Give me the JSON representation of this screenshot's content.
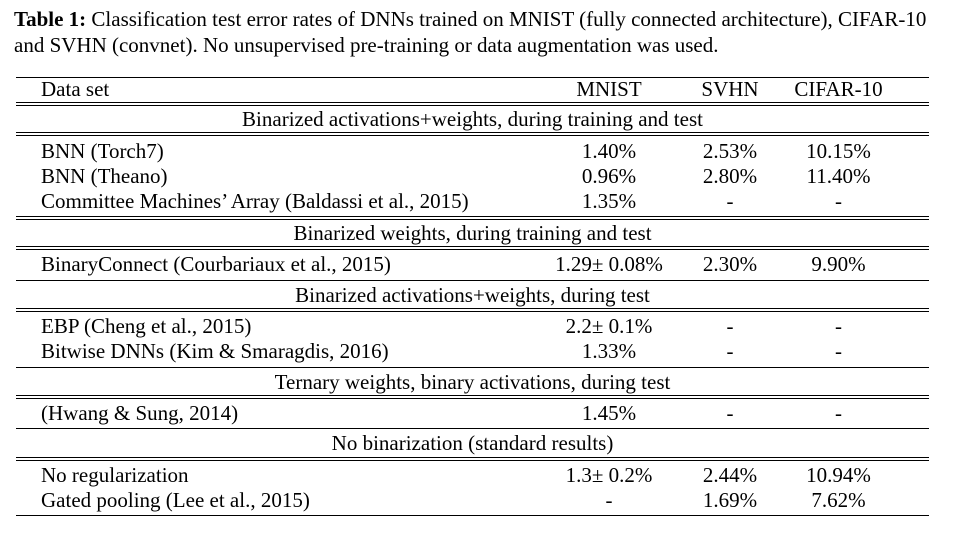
{
  "caption": {
    "label": "Table 1:",
    "text": "Classification test error rates of DNNs trained on MNIST (fully connected architecture), CIFAR-10 and SVHN (convnet). No unsupervised pre-training or data augmentation was used."
  },
  "table": {
    "headers": [
      "Data set",
      "MNIST",
      "SVHN",
      "CIFAR-10"
    ],
    "sections": [
      {
        "title": "Binarized activations+weights, during training and test",
        "rows": [
          [
            "BNN (Torch7)",
            "1.40%",
            "2.53%",
            "10.15%"
          ],
          [
            "BNN (Theano)",
            "0.96%",
            "2.80%",
            "11.40%"
          ],
          [
            "Committee Machines’ Array (Baldassi et al., 2015)",
            "1.35%",
            "-",
            "-"
          ]
        ]
      },
      {
        "title": "Binarized weights, during training and test",
        "rows": [
          [
            "BinaryConnect (Courbariaux et al., 2015)",
            "1.29± 0.08%",
            "2.30%",
            "9.90%"
          ]
        ]
      },
      {
        "title": "Binarized activations+weights, during test",
        "rows": [
          [
            "EBP (Cheng et al., 2015)",
            "2.2± 0.1%",
            "-",
            "-"
          ],
          [
            "Bitwise DNNs (Kim & Smaragdis, 2016)",
            "1.33%",
            "-",
            "-"
          ]
        ]
      },
      {
        "title": "Ternary weights, binary activations, during test",
        "rows": [
          [
            "(Hwang & Sung, 2014)",
            "1.45%",
            "-",
            "-"
          ]
        ]
      },
      {
        "title": "No binarization (standard results)",
        "rows": [
          [
            "No regularization",
            "1.3± 0.2%",
            "2.44%",
            "10.94%"
          ],
          [
            "Gated pooling (Lee et al., 2015)",
            "-",
            "1.69%",
            "7.62%"
          ]
        ]
      }
    ]
  }
}
